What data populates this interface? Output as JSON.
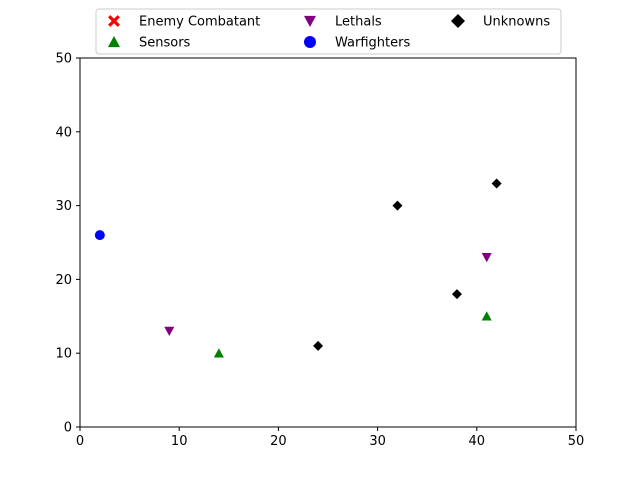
{
  "chart_data": {
    "type": "scatter",
    "title": "",
    "xlabel": "",
    "ylabel": "",
    "xlim": [
      0,
      50
    ],
    "ylim": [
      0,
      50
    ],
    "xticks": [
      0,
      10,
      20,
      30,
      40,
      50
    ],
    "yticks": [
      0,
      10,
      20,
      30,
      40,
      50
    ],
    "grid": false,
    "legend_position": "top-center",
    "series": [
      {
        "name": "Enemy Combatant",
        "marker": "x-cross",
        "color": "#ff0000",
        "points": []
      },
      {
        "name": "Sensors",
        "marker": "triangle-up",
        "color": "#008000",
        "points": [
          [
            14,
            10
          ],
          [
            41,
            15
          ]
        ]
      },
      {
        "name": "Lethals",
        "marker": "triangle-down",
        "color": "#800080",
        "points": [
          [
            9,
            13
          ],
          [
            41,
            23
          ]
        ]
      },
      {
        "name": "Warfighters",
        "marker": "circle",
        "color": "#0000ff",
        "points": [
          [
            2,
            26
          ]
        ]
      },
      {
        "name": "Unknowns",
        "marker": "diamond",
        "color": "#000000",
        "points": [
          [
            24,
            11
          ],
          [
            32,
            30
          ],
          [
            38,
            18
          ],
          [
            42,
            33
          ]
        ]
      }
    ]
  }
}
